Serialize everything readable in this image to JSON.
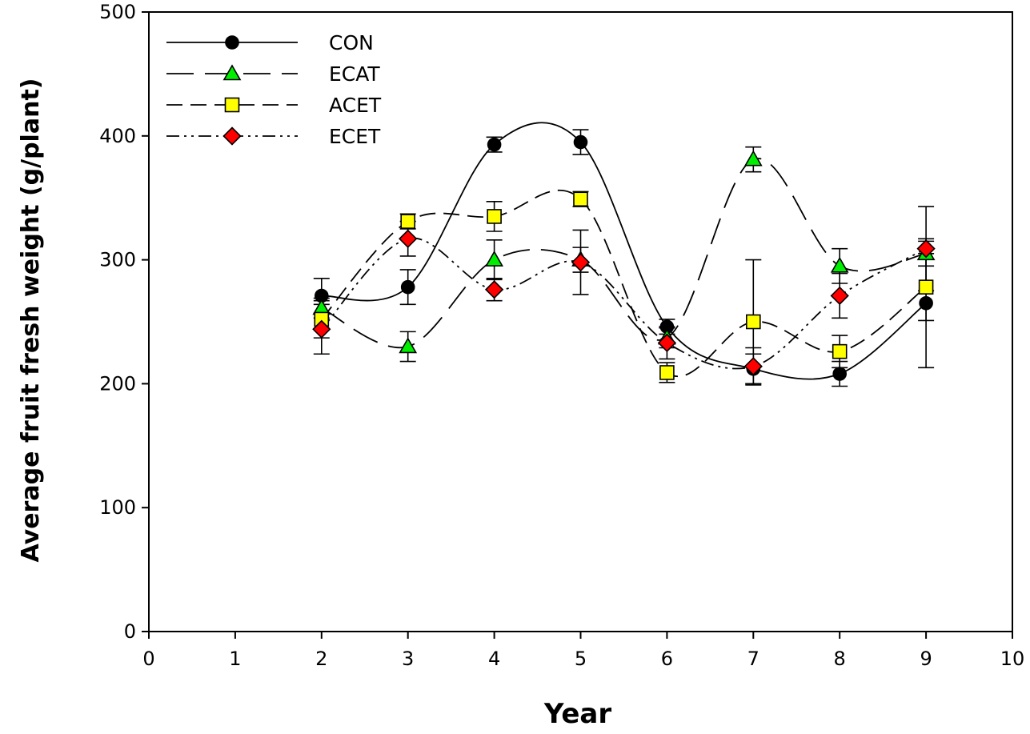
{
  "chart_data": {
    "type": "line",
    "xlabel": "Year",
    "ylabel": "Average fruit fresh weight (g/plant)",
    "xlim": [
      0,
      10
    ],
    "ylim": [
      0,
      500
    ],
    "x_ticks": [
      "0",
      "1",
      "2",
      "3",
      "4",
      "5",
      "6",
      "7",
      "8",
      "9",
      "10"
    ],
    "y_ticks": [
      "0",
      "100",
      "200",
      "300",
      "400",
      "500"
    ],
    "grid": false,
    "legend_position": "top-left",
    "x": [
      2,
      3,
      4,
      5,
      6,
      7,
      8,
      9
    ],
    "series": [
      {
        "name": "CON",
        "marker": "circle",
        "color": "#000000",
        "line_style": "solid",
        "values": [
          271,
          278,
          393,
          395,
          246,
          212,
          208,
          265
        ],
        "errors": [
          14,
          14,
          6,
          10,
          6,
          12,
          10,
          52
        ]
      },
      {
        "name": "ECAT",
        "marker": "triangle",
        "color": "#00ee00",
        "line_style": "long-dash",
        "values": [
          261,
          230,
          300,
          300,
          237,
          381,
          295,
          305
        ],
        "errors": [
          8,
          12,
          16,
          10,
          8,
          10,
          14,
          10
        ]
      },
      {
        "name": "ACET",
        "marker": "square",
        "color": "#ffff00",
        "line_style": "dash",
        "values": [
          252,
          331,
          335,
          349,
          209,
          250,
          226,
          278
        ],
        "errors": [
          15,
          6,
          12,
          6,
          8,
          50,
          13,
          27
        ]
      },
      {
        "name": "ECET",
        "marker": "diamond",
        "color": "#ff0000",
        "line_style": "dash-dot-dot",
        "values": [
          244,
          317,
          276,
          298,
          233,
          214,
          271,
          309
        ],
        "errors": [
          20,
          14,
          9,
          26,
          13,
          15,
          18,
          34
        ]
      }
    ]
  }
}
